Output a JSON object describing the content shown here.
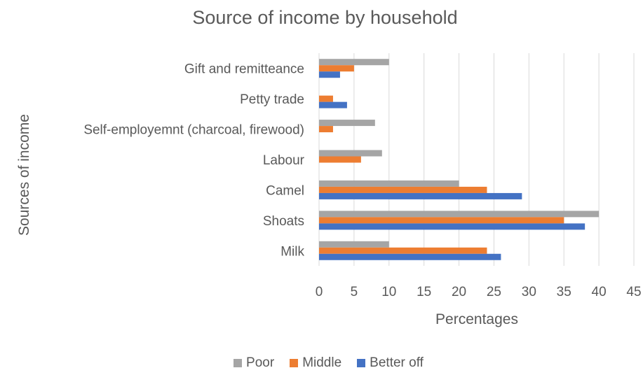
{
  "chart_data": {
    "type": "bar",
    "orientation": "horizontal",
    "title": "Source of income by household",
    "xlabel": "Percentages",
    "ylabel": "Sources of income",
    "xlim": [
      0,
      45
    ],
    "xticks": [
      "0",
      "5",
      "10",
      "15",
      "20",
      "25",
      "30",
      "35",
      "40",
      "45"
    ],
    "grid": true,
    "legend_position": "bottom",
    "categories": [
      "Gift and remitteance",
      "Petty trade",
      "Self-employemnt (charcoal, firewood)",
      "Labour",
      "Camel",
      "Shoats",
      "Milk"
    ],
    "series": [
      {
        "name": "Poor",
        "color": "#A5A5A5",
        "values": [
          10,
          0,
          8,
          9,
          20,
          40,
          10
        ]
      },
      {
        "name": "Middle",
        "color": "#ED7D31",
        "values": [
          5,
          2,
          2,
          6,
          24,
          35,
          24
        ]
      },
      {
        "name": "Better off",
        "color": "#4472C4",
        "values": [
          3,
          4,
          0,
          0,
          29,
          38,
          26
        ]
      }
    ]
  }
}
